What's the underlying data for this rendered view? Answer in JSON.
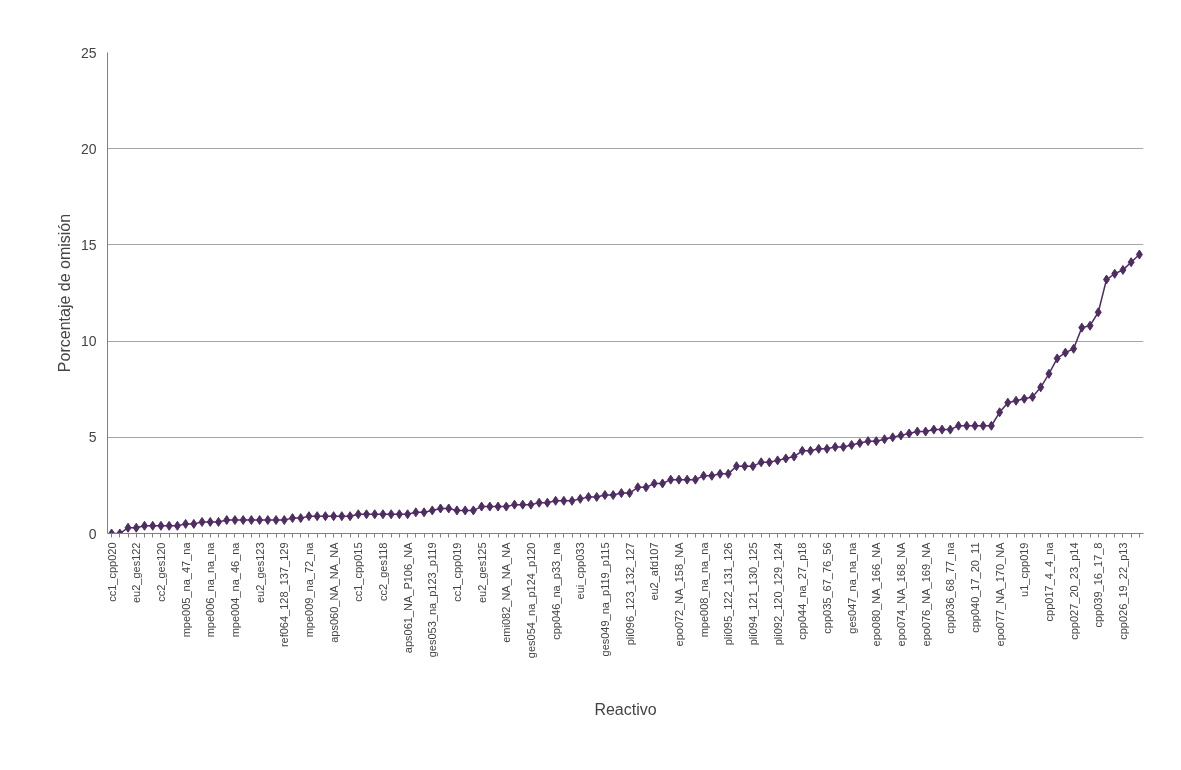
{
  "chart_data": {
    "type": "line",
    "xlabel": "Reactivo",
    "ylabel": "Porcentaje de omisión",
    "categories": [
      "cc1_cpp020",
      null,
      null,
      "eu2_ges122",
      null,
      null,
      "cc2_ges120",
      null,
      null,
      "mpe005_na_47_na",
      null,
      null,
      "mpe006_na_na_na",
      null,
      null,
      "mpe004_na_46_na",
      null,
      null,
      "eu2_ges123",
      null,
      null,
      "ref064_128_137_129",
      null,
      null,
      "mpe009_na_72_na",
      null,
      null,
      "aps060_NA_NA_NA",
      null,
      null,
      "cc1_cpp015",
      null,
      null,
      "cc2_ges118",
      null,
      null,
      "aps061_NA_P106_NA",
      null,
      null,
      "ges053_na_p123_p119",
      null,
      null,
      "cc1_cpp019",
      null,
      null,
      "eu2_ges125",
      null,
      null,
      "emi082_NA_NA_NA",
      null,
      null,
      "ges054_na_p124_p120",
      null,
      null,
      "cpp046_na_p33_na",
      null,
      null,
      "eui_cpp033",
      null,
      null,
      "ges049_na_p119_p115",
      null,
      null,
      "pli096_123_132_127",
      null,
      null,
      "eu2_afd107",
      null,
      null,
      "epo072_NA_158_NA",
      null,
      null,
      "mpe008_na_na_na",
      null,
      null,
      "pli095_122_131_126",
      null,
      null,
      "pli094_121_130_125",
      null,
      null,
      "pli092_120_129_124",
      null,
      null,
      "cpp044_na_27_p18",
      null,
      null,
      "cpp035_67_76_56",
      null,
      null,
      "ges047_na_na_na",
      null,
      null,
      "epo080_NA_166_NA",
      null,
      null,
      "epo074_NA_168_NA",
      null,
      null,
      "epo076_NA_169_NA",
      null,
      null,
      "cpp036_68_77_na",
      null,
      null,
      "cpp040_17_20_11",
      null,
      null,
      "epo077_NA_170_NA",
      null,
      null,
      "u1_cpp019",
      null,
      null,
      "cpp017_4_4_na",
      null,
      null,
      "cpp027_20_23_p14",
      null,
      null,
      "cpp039_16_17_8",
      null,
      null,
      "cpp026_19_22_p13",
      null,
      null
    ],
    "series": [
      {
        "color": "#4f2d63",
        "values": [
          0,
          0,
          0.3,
          0.3,
          0.4,
          0.4,
          0.4,
          0.4,
          0.4,
          0.5,
          0.5,
          0.6,
          0.6,
          0.6,
          0.7,
          0.7,
          0.7,
          0.7,
          0.7,
          0.7,
          0.7,
          0.7,
          0.8,
          0.8,
          0.9,
          0.9,
          0.9,
          0.9,
          0.9,
          0.9,
          1.0,
          1.0,
          1.0,
          1.0,
          1.0,
          1.0,
          1.0,
          1.1,
          1.1,
          1.2,
          1.3,
          1.3,
          1.2,
          1.2,
          1.2,
          1.4,
          1.4,
          1.4,
          1.4,
          1.5,
          1.5,
          1.5,
          1.6,
          1.6,
          1.7,
          1.7,
          1.7,
          1.8,
          1.9,
          1.9,
          2.0,
          2.0,
          2.1,
          2.1,
          2.4,
          2.4,
          2.6,
          2.6,
          2.8,
          2.8,
          2.8,
          2.8,
          3.0,
          3.0,
          3.1,
          3.1,
          3.5,
          3.5,
          3.5,
          3.7,
          3.7,
          3.8,
          3.9,
          4.0,
          4.3,
          4.3,
          4.4,
          4.4,
          4.5,
          4.5,
          4.6,
          4.7,
          4.8,
          4.8,
          4.9,
          5.0,
          5.1,
          5.2,
          5.3,
          5.3,
          5.4,
          5.4,
          5.4,
          5.6,
          5.6,
          5.6,
          5.6,
          5.6,
          6.3,
          6.8,
          6.9,
          7.0,
          7.1,
          7.6,
          8.3,
          9.1,
          9.4,
          9.6,
          10.7,
          10.8,
          11.5,
          13.2,
          13.5,
          13.7,
          14.1,
          14.5
        ]
      }
    ],
    "ylim": [
      0,
      25
    ],
    "yticks": [
      0,
      5,
      10,
      15,
      20,
      25
    ],
    "grid": "y",
    "marker": "diamond",
    "line_style": "solid"
  }
}
